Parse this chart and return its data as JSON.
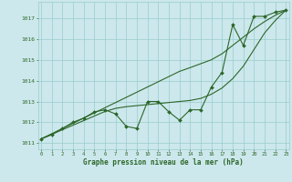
{
  "hours": [
    0,
    1,
    2,
    3,
    4,
    5,
    6,
    7,
    8,
    9,
    10,
    11,
    12,
    13,
    14,
    15,
    16,
    17,
    18,
    19,
    20,
    21,
    22,
    23
  ],
  "pressure_main": [
    1011.2,
    1011.4,
    1011.7,
    1012.0,
    1012.2,
    1012.5,
    1012.6,
    1012.4,
    1011.8,
    1011.7,
    1013.0,
    1013.0,
    1012.5,
    1012.1,
    1012.6,
    1012.6,
    1013.7,
    1014.4,
    1016.7,
    1015.7,
    1017.1,
    1017.1,
    1017.3,
    1017.4
  ],
  "pressure_line1": [
    1011.2,
    1011.45,
    1011.7,
    1011.95,
    1012.2,
    1012.45,
    1012.7,
    1012.95,
    1013.2,
    1013.45,
    1013.7,
    1013.95,
    1014.2,
    1014.45,
    1014.63,
    1014.82,
    1015.01,
    1015.3,
    1015.7,
    1016.1,
    1016.5,
    1016.85,
    1017.15,
    1017.4
  ],
  "pressure_line2": [
    1011.2,
    1011.42,
    1011.64,
    1011.86,
    1012.08,
    1012.3,
    1012.52,
    1012.67,
    1012.75,
    1012.8,
    1012.85,
    1012.9,
    1012.95,
    1013.0,
    1013.05,
    1013.15,
    1013.35,
    1013.65,
    1014.1,
    1014.7,
    1015.5,
    1016.3,
    1016.9,
    1017.4
  ],
  "bg_color": "#cce8ec",
  "grid_color": "#99cccc",
  "line_color": "#2d6629",
  "xlabel": "Graphe pression niveau de la mer (hPa)",
  "yticks": [
    1011,
    1012,
    1013,
    1014,
    1015,
    1016,
    1017
  ],
  "ylim_min": 1010.7,
  "ylim_max": 1017.8,
  "xlim_min": -0.3,
  "xlim_max": 23.3
}
